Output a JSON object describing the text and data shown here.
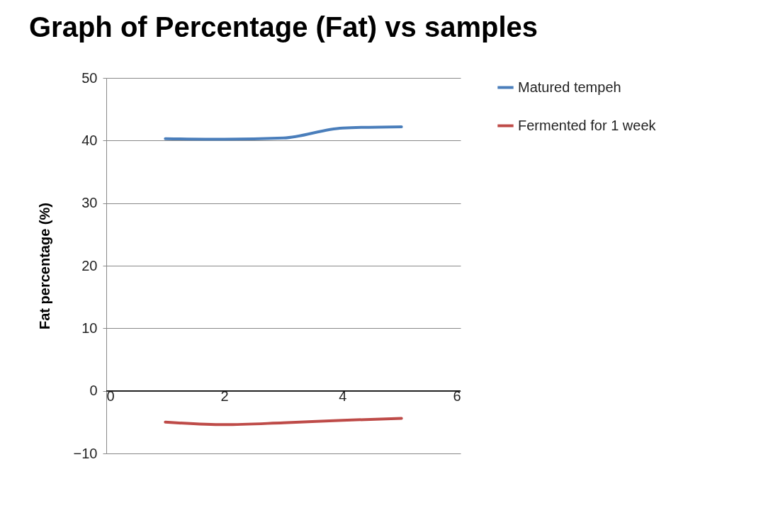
{
  "chart_data": {
    "type": "line",
    "title": "Graph of Percentage (Fat) vs samples",
    "ylabel": "Fat percentage (%)",
    "x": [
      1,
      2,
      3,
      4,
      5
    ],
    "series": [
      {
        "name": "Matured tempeh",
        "color": "#4a7ebb",
        "values": [
          40.3,
          40.2,
          40.4,
          42.0,
          42.2
        ]
      },
      {
        "name": "Fermented for 1 week",
        "color": "#be4b48",
        "values": [
          -5.0,
          -5.4,
          -5.1,
          -4.7,
          -4.4
        ]
      }
    ],
    "xlim": [
      0,
      6
    ],
    "xticks": [
      0,
      2,
      4,
      6
    ],
    "ylim": [
      -10,
      50
    ],
    "yticks": [
      -10,
      0,
      10,
      20,
      30,
      40,
      50
    ],
    "grid": "y",
    "legend": "right",
    "marker": "none",
    "line_style": "solid"
  }
}
